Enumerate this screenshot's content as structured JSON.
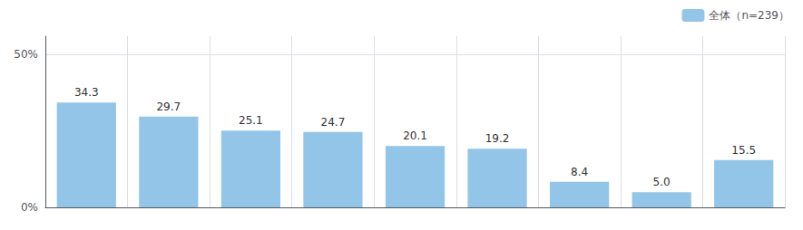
{
  "chart_data": {
    "type": "bar",
    "categories": [
      null,
      null,
      null,
      null,
      null,
      null,
      null,
      null,
      null
    ],
    "series": [
      {
        "name": "全体（n=239）",
        "color": "#92C5E8",
        "values": [
          34.3,
          29.7,
          25.1,
          24.7,
          20.1,
          19.2,
          8.4,
          5.0,
          15.5
        ],
        "value_labels": [
          "34.3",
          "29.7",
          "25.1",
          "24.7",
          "20.1",
          "19.2",
          "8.4",
          "5.0",
          "15.5"
        ]
      }
    ],
    "ylim": [
      0,
      56
    ],
    "yticks": [
      {
        "value": 0,
        "label": "0%"
      },
      {
        "value": 50,
        "label": "50%"
      }
    ],
    "grid": true,
    "legend": "upper right",
    "data_labels": true
  }
}
